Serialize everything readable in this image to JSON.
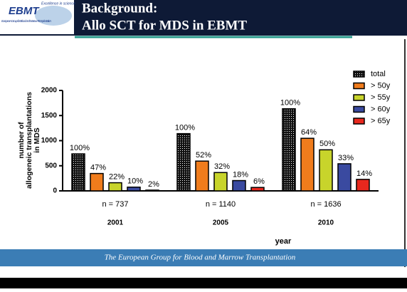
{
  "logo": {
    "name": "EBMT",
    "tagline": "Excellence in science",
    "subtitle": "European Group for Blood and Marrow Transplantation"
  },
  "header": {
    "title": [
      "Background:",
      "Allo SCT for MDS in EBMT"
    ]
  },
  "footer": {
    "text": "The European Group for Blood and Marrow Transplantation"
  },
  "chart_data": {
    "type": "bar",
    "categories": [
      "2001",
      "2005",
      "2010"
    ],
    "group_labels": [
      "n = 737",
      "n = 1140",
      "n = 1636"
    ],
    "xlabel": "year",
    "ylabel": [
      "number of",
      "allogeneic transplantations",
      "in MDS"
    ],
    "ylim": [
      0,
      2000
    ],
    "yticks": [
      0,
      500,
      1000,
      1500,
      2000
    ],
    "legend": "top-right",
    "series": [
      {
        "name": "total",
        "color": "#111111",
        "fill_pattern": "dots",
        "values": [
          737,
          1140,
          1636
        ],
        "labels": [
          "100%",
          "100%",
          "100%"
        ]
      },
      {
        "name": "> 50y",
        "color": "#f07c1c",
        "values": [
          346,
          593,
          1047
        ],
        "labels": [
          "47%",
          "52%",
          "64%"
        ]
      },
      {
        "name": "> 55y",
        "color": "#c8d42b",
        "values": [
          162,
          365,
          818
        ],
        "labels": [
          "22%",
          "32%",
          "50%"
        ]
      },
      {
        "name": "> 60y",
        "color": "#3a4aa0",
        "values": [
          74,
          205,
          540
        ],
        "labels": [
          "10%",
          "18%",
          "33%"
        ]
      },
      {
        "name": "> 65y",
        "color": "#e8281e",
        "values": [
          15,
          68,
          229
        ],
        "labels": [
          "2%",
          "6%",
          "14%"
        ]
      }
    ]
  }
}
